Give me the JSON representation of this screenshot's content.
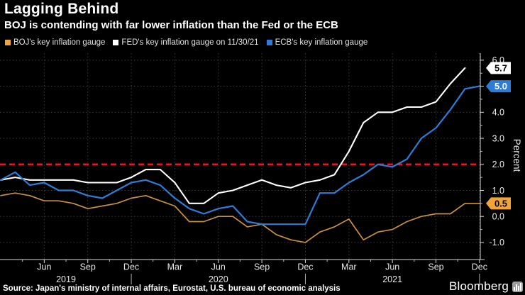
{
  "header": {
    "title": "Lagging Behind",
    "subtitle": "BOJ is contending with far lower inflation than the Fed or the ECB"
  },
  "legend": {
    "items": [
      {
        "label": "BOJ's key inflation gauge",
        "color": "#f2a43c"
      },
      {
        "label": "FED's key inflation gauge on 11/30/21",
        "color": "#ffffff"
      },
      {
        "label": "ECB's key inflation gauge",
        "color": "#2f7cd7"
      }
    ]
  },
  "chart_data": {
    "type": "line",
    "x": [
      "2019-03",
      "2019-04",
      "2019-05",
      "2019-06",
      "2019-07",
      "2019-08",
      "2019-09",
      "2019-10",
      "2019-11",
      "2019-12",
      "2020-01",
      "2020-02",
      "2020-03",
      "2020-04",
      "2020-05",
      "2020-06",
      "2020-07",
      "2020-08",
      "2020-09",
      "2020-10",
      "2020-11",
      "2020-12",
      "2021-01",
      "2021-02",
      "2021-03",
      "2021-04",
      "2021-05",
      "2021-06",
      "2021-07",
      "2021-08",
      "2021-09",
      "2021-10",
      "2021-11",
      "2021-12"
    ],
    "series": [
      {
        "name": "BOJ's key inflation gauge",
        "color": "#c9913f",
        "values": [
          0.8,
          0.9,
          0.8,
          0.6,
          0.6,
          0.5,
          0.3,
          0.4,
          0.5,
          0.7,
          0.8,
          0.6,
          0.4,
          -0.2,
          -0.2,
          0.0,
          0.0,
          -0.4,
          -0.3,
          -0.7,
          -0.9,
          -1.0,
          -0.6,
          -0.4,
          -0.1,
          -0.9,
          -0.6,
          -0.5,
          -0.2,
          0.0,
          0.1,
          0.1,
          0.5,
          0.5
        ]
      },
      {
        "name": "FED's key inflation gauge on 11/30/21",
        "color": "#ffffff",
        "values": [
          1.4,
          1.5,
          1.4,
          1.4,
          1.4,
          1.4,
          1.3,
          1.3,
          1.3,
          1.5,
          1.8,
          1.8,
          1.3,
          0.5,
          0.5,
          0.9,
          1.0,
          1.2,
          1.4,
          1.2,
          1.1,
          1.3,
          1.4,
          1.6,
          2.5,
          3.6,
          4.0,
          4.0,
          4.2,
          4.2,
          4.4,
          5.1,
          5.7,
          null
        ]
      },
      {
        "name": "ECB's key inflation gauge",
        "color": "#2f7cd7",
        "values": [
          1.4,
          1.7,
          1.2,
          1.3,
          1.0,
          1.0,
          0.8,
          0.7,
          1.0,
          1.3,
          1.4,
          1.2,
          0.7,
          0.3,
          0.1,
          0.3,
          0.4,
          -0.2,
          -0.3,
          -0.3,
          -0.3,
          -0.3,
          0.9,
          0.9,
          1.3,
          1.6,
          2.0,
          1.9,
          2.2,
          3.0,
          3.4,
          4.1,
          4.9,
          5.0
        ]
      }
    ],
    "title": "Lagging Behind",
    "xlabel": "",
    "ylabel": "Percent",
    "ylim": [
      -1.65,
      6.3
    ],
    "grid": true,
    "legend_position": "top",
    "yticks": [
      "6.0",
      "5.0",
      "4.0",
      "3.0",
      "2.0",
      "1.0",
      "0.0",
      "-1.0"
    ],
    "xticks": [
      {
        "label": "Jun",
        "m": 3
      },
      {
        "label": "Sep",
        "m": 6
      },
      {
        "label": "Dec",
        "m": 9
      },
      {
        "label": "Mar",
        "m": 12
      },
      {
        "label": "Jun",
        "m": 15
      },
      {
        "label": "Sep",
        "m": 18
      },
      {
        "label": "Dec",
        "m": 21
      },
      {
        "label": "Mar",
        "m": 24
      },
      {
        "label": "Jun",
        "m": 27
      },
      {
        "label": "Sep",
        "m": 30
      },
      {
        "label": "Dec",
        "m": 33
      }
    ],
    "year_labels": [
      {
        "label": "2019",
        "m": 4.5
      },
      {
        "label": "2020",
        "m": 15
      },
      {
        "label": "2021",
        "m": 27
      }
    ],
    "year_separators_m": [
      9,
      21,
      33
    ],
    "target_line": {
      "value": 2.0,
      "color": "#ea1329"
    },
    "end_labels": [
      {
        "text": "5.7",
        "value": 5.7,
        "bg": "#ffffff",
        "fg": "#000000"
      },
      {
        "text": "5.0",
        "value": 5.0,
        "bg": "#2f7cd7",
        "fg": "#ffffff"
      },
      {
        "text": "0.5",
        "value": 0.5,
        "bg": "#f2a43c",
        "fg": "#000000"
      }
    ]
  },
  "footer": {
    "source": "Source: Japan's ministry of internal affairs, Eurostat, U.S. bureau of economic analysis",
    "brand": "Bloomberg"
  }
}
